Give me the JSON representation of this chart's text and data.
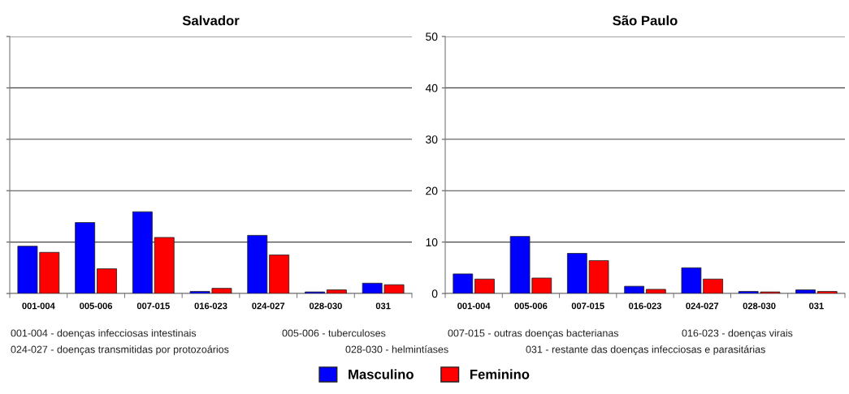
{
  "chart_data": [
    {
      "type": "bar",
      "title": "Salvador",
      "categories": [
        "001-004",
        "005-006",
        "007-015",
        "016-023",
        "024-027",
        "028-030",
        "031"
      ],
      "series": [
        {
          "name": "Masculino",
          "color": "#0000ff",
          "values": [
            9.2,
            13.8,
            15.9,
            0.4,
            11.3,
            0.3,
            2.0
          ]
        },
        {
          "name": "Feminino",
          "color": "#ff0000",
          "values": [
            8.0,
            4.8,
            10.9,
            1.0,
            7.5,
            0.7,
            1.7
          ]
        }
      ],
      "ylim": [
        0,
        50
      ],
      "yticks": [
        0,
        10,
        20,
        30,
        40,
        50
      ],
      "grid": "y",
      "tick_labels": "x",
      "legend": "bottom",
      "annotations": [
        "001-004 - doenças infecciosas intestinais",
        "005-006 - tuberculoses",
        "007-015 - outras doenças bacterianas",
        "016-023 - doenças virais",
        "024-027 - doenças transmitidas por protozoários",
        "028-030 - helmintíases",
        "031 - restante das doenças infecciosas e parasitárias"
      ]
    },
    {
      "type": "bar",
      "title": "São Paulo",
      "categories": [
        "001-004",
        "005-006",
        "007-015",
        "016-023",
        "024-027",
        "028-030",
        "031"
      ],
      "series": [
        {
          "color": "#0000ff",
          "values": [
            3.8,
            11.1,
            7.8,
            1.4,
            5.0,
            0.4,
            0.7
          ]
        },
        {
          "color": "#ff0000",
          "values": [
            2.8,
            3.0,
            6.4,
            0.8,
            2.8,
            0.3,
            0.4
          ]
        }
      ],
      "ylim": [
        0,
        50
      ],
      "yticks": [
        0,
        10,
        20,
        30,
        40,
        50
      ],
      "grid": "y"
    }
  ]
}
